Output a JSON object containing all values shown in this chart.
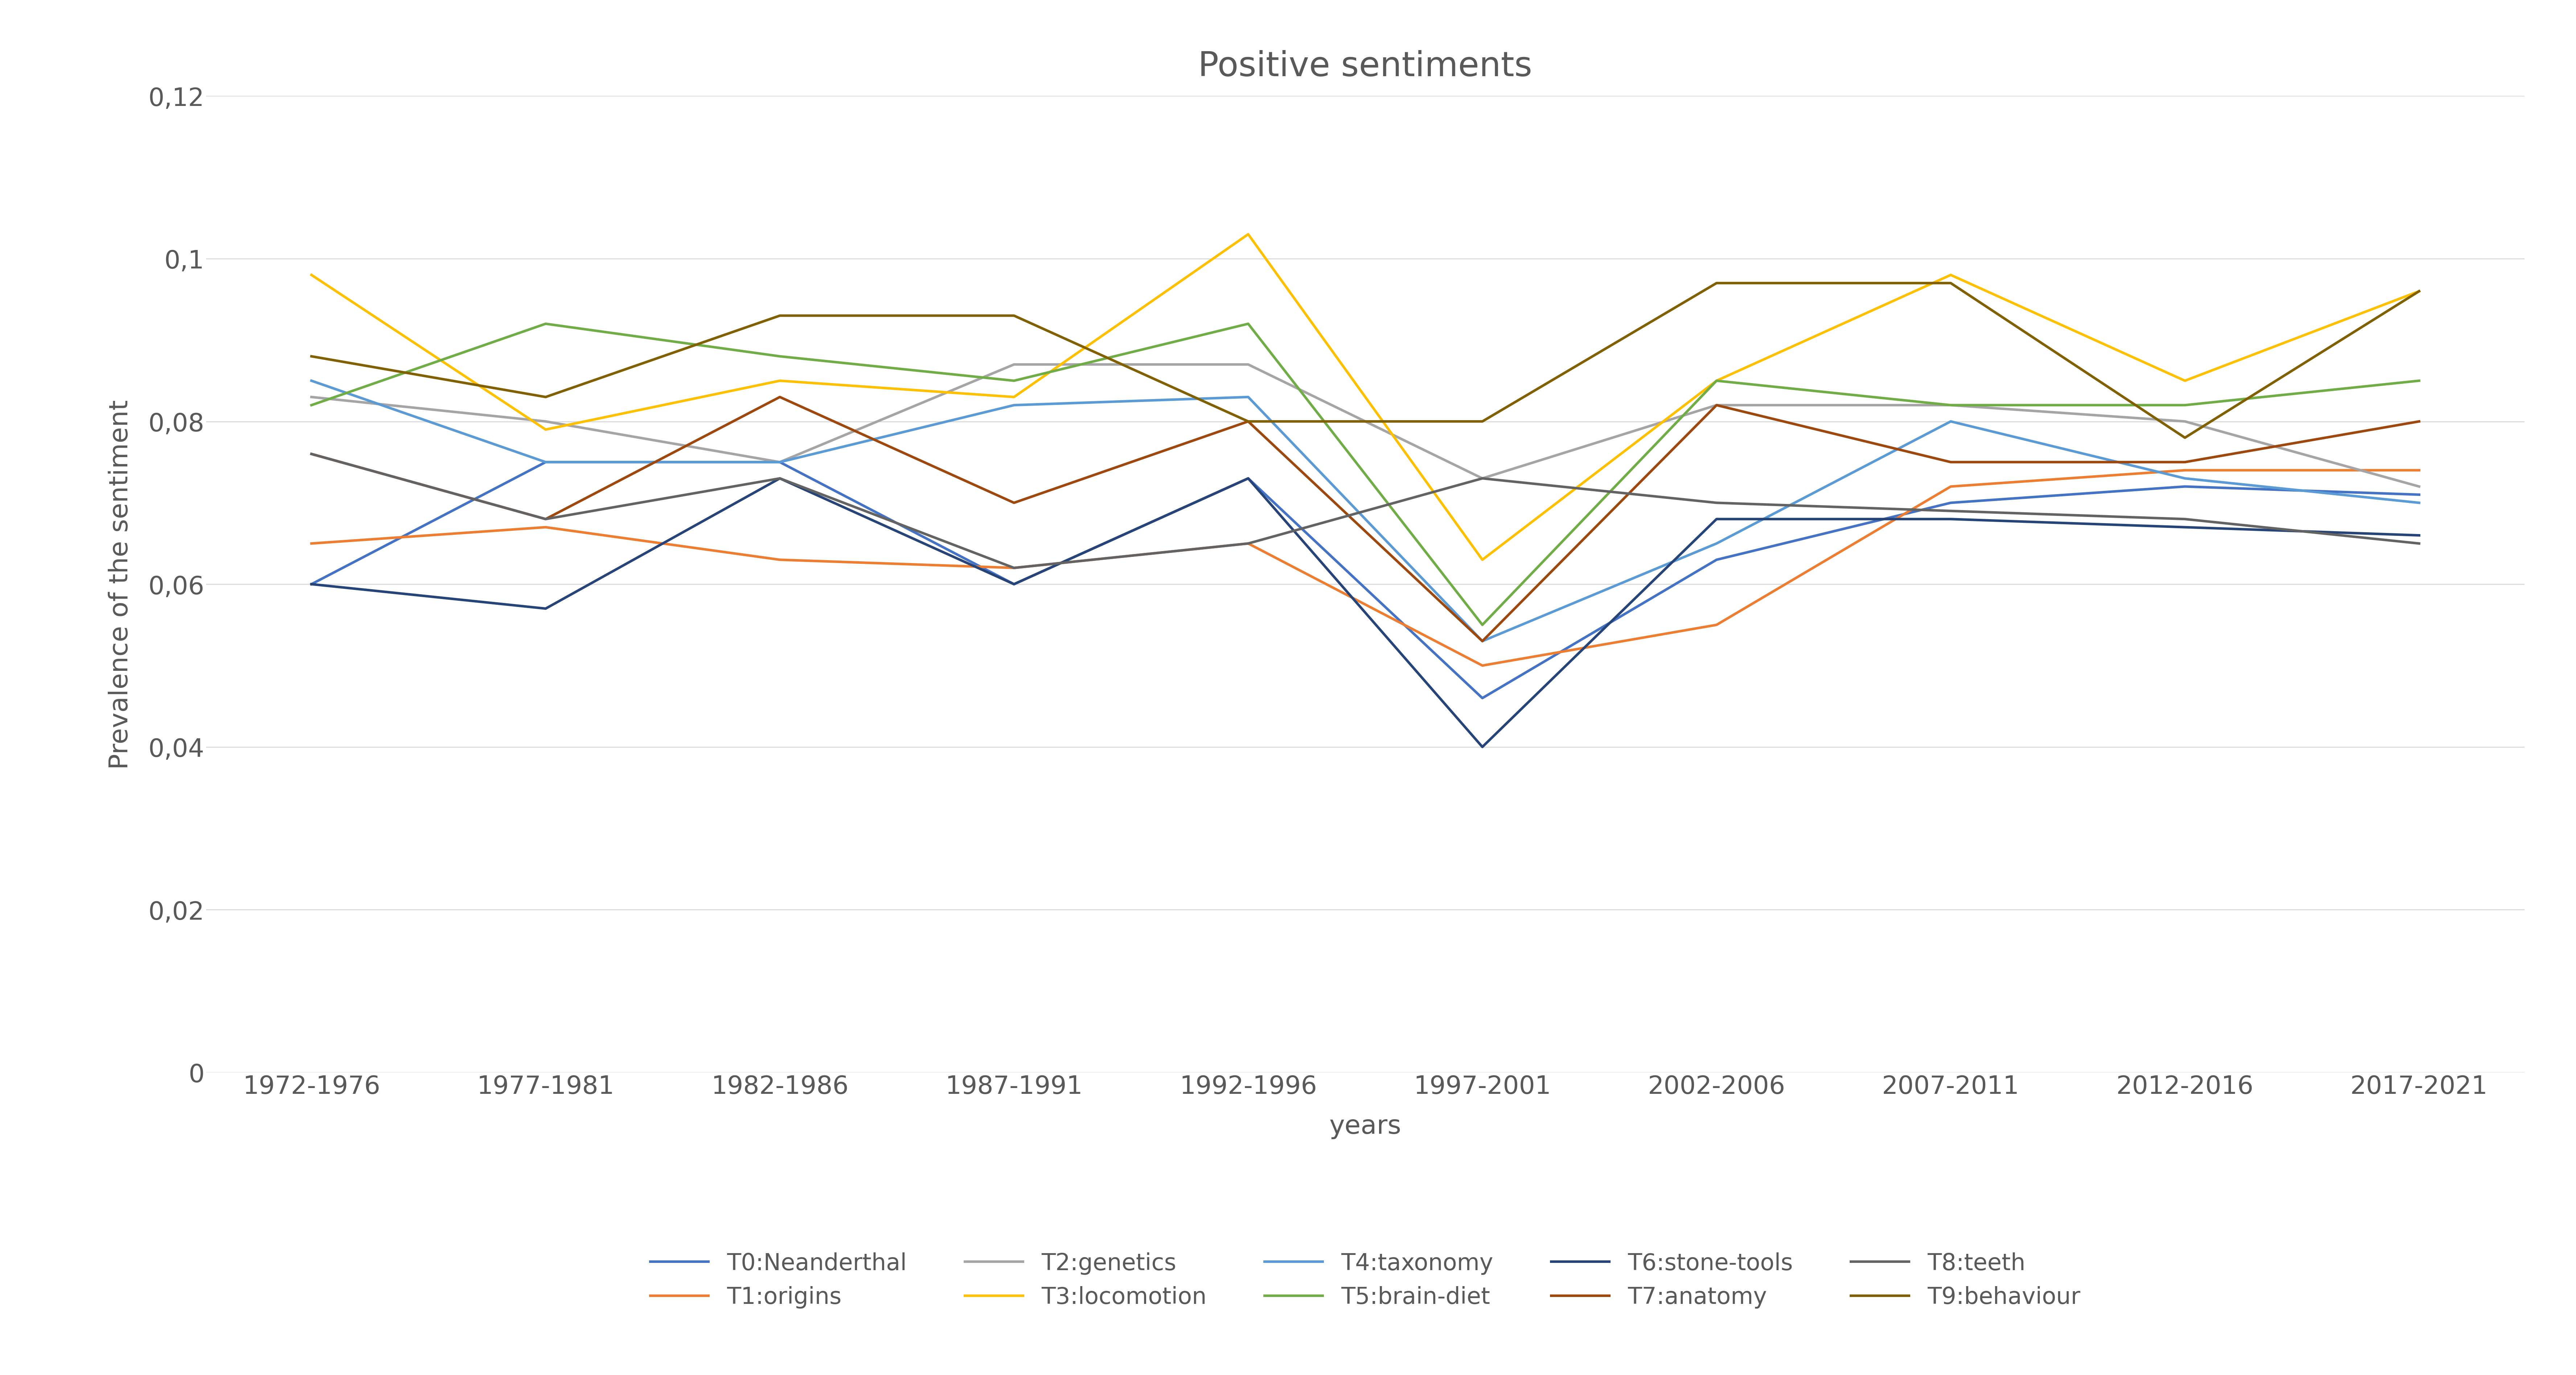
{
  "title": "Positive sentiments",
  "xlabel": "years",
  "ylabel": "Prevalence of the sentiment",
  "x_labels": [
    "1972-1976",
    "1977-1981",
    "1982-1986",
    "1987-1991",
    "1992-1996",
    "1997-2001",
    "2002-2006",
    "2007-2011",
    "2012-2016",
    "2017-2021"
  ],
  "ylim": [
    0,
    0.12
  ],
  "yticks": [
    0,
    0.02,
    0.04,
    0.06,
    0.08,
    0.1,
    0.12
  ],
  "ytick_labels": [
    "0",
    "0,02",
    "0,04",
    "0,06",
    "0,08",
    "0,1",
    "0,12"
  ],
  "series": [
    {
      "label": "T0:Neanderthal",
      "color": "#4472C4",
      "values": [
        0.06,
        0.075,
        0.075,
        0.06,
        0.073,
        0.046,
        0.063,
        0.07,
        0.072,
        0.071
      ]
    },
    {
      "label": "T1:origins",
      "color": "#ED7D31",
      "values": [
        0.065,
        0.067,
        0.063,
        0.062,
        0.065,
        0.05,
        0.055,
        0.072,
        0.074,
        0.074
      ]
    },
    {
      "label": "T2:genetics",
      "color": "#A5A5A5",
      "values": [
        0.083,
        0.08,
        0.075,
        0.087,
        0.087,
        0.073,
        0.082,
        0.082,
        0.08,
        0.072
      ]
    },
    {
      "label": "T3:locomotion",
      "color": "#FFC000",
      "values": [
        0.098,
        0.079,
        0.085,
        0.083,
        0.103,
        0.063,
        0.085,
        0.098,
        0.085,
        0.096
      ]
    },
    {
      "label": "T4:taxonomy",
      "color": "#5B9BD5",
      "values": [
        0.085,
        0.075,
        0.075,
        0.082,
        0.083,
        0.053,
        0.065,
        0.08,
        0.073,
        0.07
      ]
    },
    {
      "label": "T5:brain-diet",
      "color": "#70AD47",
      "values": [
        0.082,
        0.092,
        0.088,
        0.085,
        0.092,
        0.055,
        0.085,
        0.082,
        0.082,
        0.085
      ]
    },
    {
      "label": "T6:stone-tools",
      "color": "#264478",
      "values": [
        0.06,
        0.057,
        0.073,
        0.06,
        0.073,
        0.04,
        0.068,
        0.068,
        0.067,
        0.066
      ]
    },
    {
      "label": "T7:anatomy",
      "color": "#9E480E",
      "values": [
        0.076,
        0.068,
        0.083,
        0.07,
        0.08,
        0.053,
        0.082,
        0.075,
        0.075,
        0.08
      ]
    },
    {
      "label": "T8:teeth",
      "color": "#636363",
      "values": [
        0.076,
        0.068,
        0.073,
        0.062,
        0.065,
        0.073,
        0.07,
        0.069,
        0.068,
        0.065
      ]
    },
    {
      "label": "T9:behaviour",
      "color": "#806000",
      "values": [
        0.088,
        0.083,
        0.093,
        0.093,
        0.08,
        0.08,
        0.097,
        0.097,
        0.078,
        0.096
      ]
    }
  ],
  "background_color": "#FFFFFF",
  "grid_color": "#D9D9D9",
  "title_fontsize": 68,
  "label_fontsize": 52,
  "tick_fontsize": 50,
  "legend_fontsize": 46,
  "line_width": 5.0
}
